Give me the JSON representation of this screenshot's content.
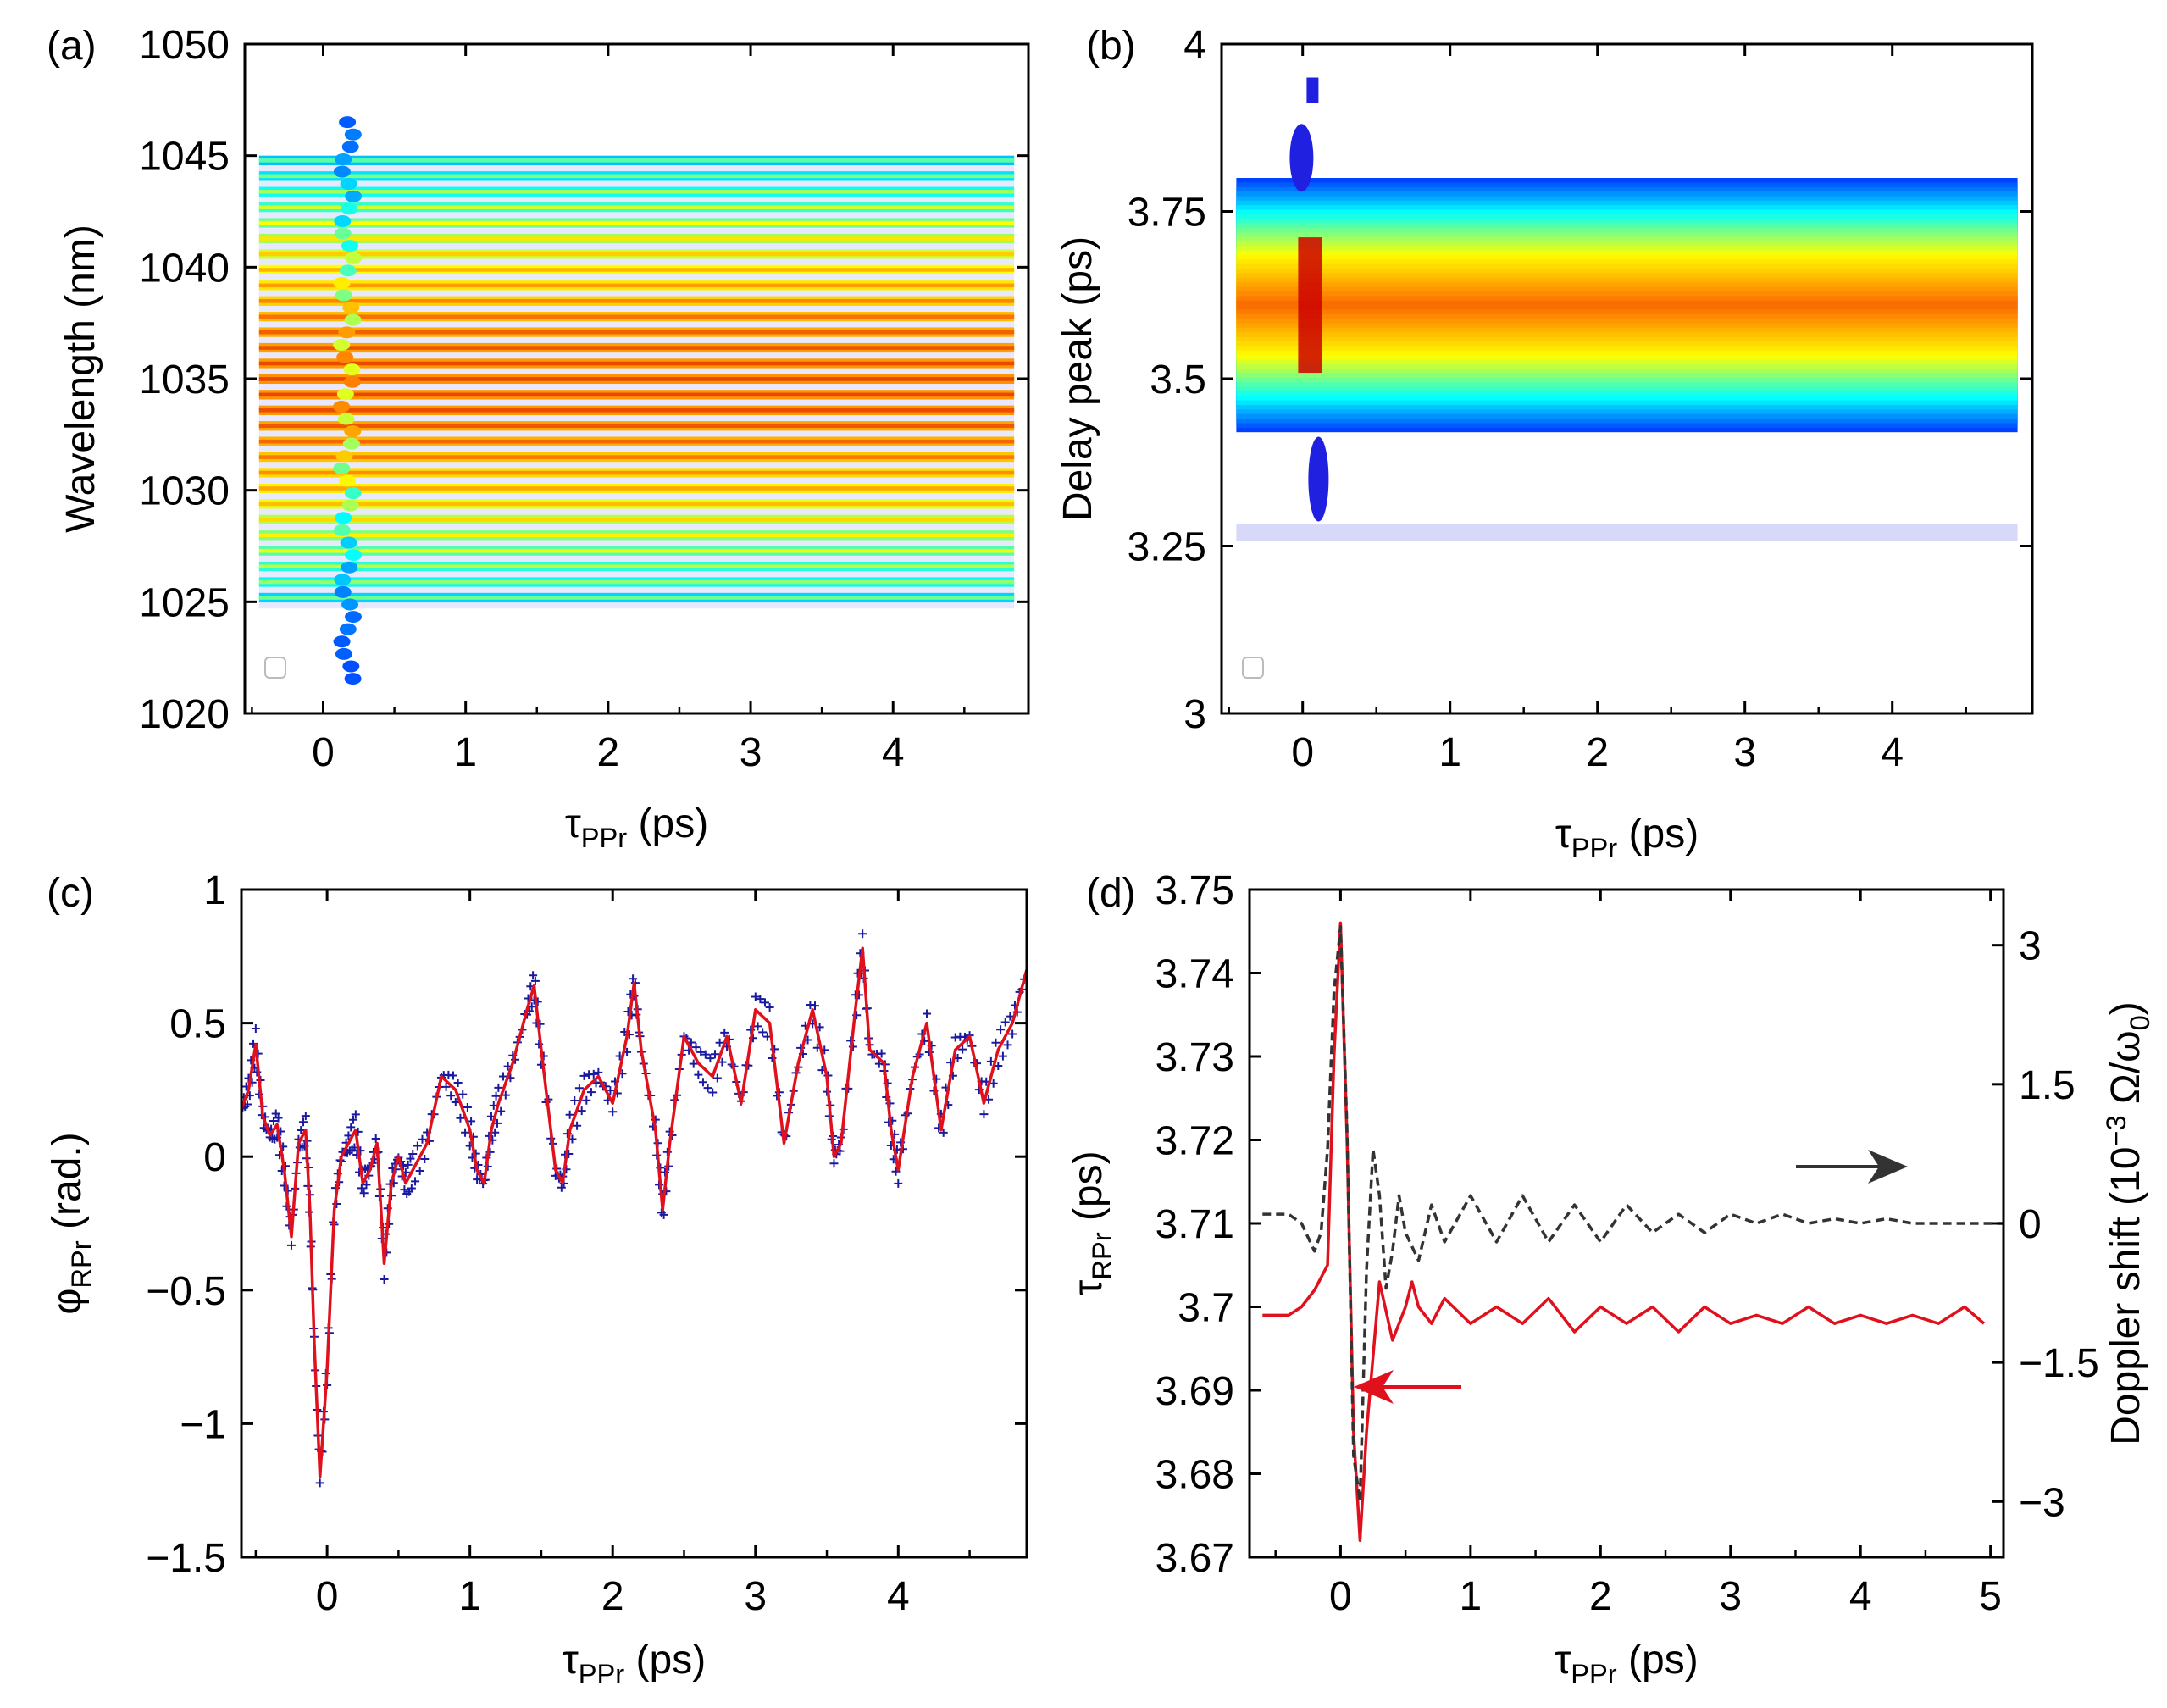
{
  "chart_data": [
    {
      "panel": "(a)",
      "type": "heatmap",
      "xlabel": "τ",
      "xlabel_sub": "PPr",
      "xlabel_unit": " (ps)",
      "ylabel": "Wavelength (nm)",
      "xlim": [
        -0.55,
        4.95
      ],
      "ylim": [
        1020,
        1050
      ],
      "xticks": [
        "0",
        "1",
        "2",
        "3",
        "4"
      ],
      "yticks": [
        "1020",
        "1025",
        "1030",
        "1035",
        "1040",
        "1045",
        "1050"
      ],
      "data_extent": {
        "x": [
          -0.45,
          4.85
        ],
        "y": [
          1025,
          1045
        ]
      },
      "fringe_spacing_nm": 0.7,
      "center_wavelength_nm": 1035,
      "perturbation_tau_ps": 0.17,
      "colormap": [
        "#ffffff",
        "#0000ff",
        "#00ffff",
        "#ffff00",
        "#ff8000",
        "#cc0000"
      ]
    },
    {
      "panel": "(b)",
      "type": "heatmap",
      "xlabel": "τ",
      "xlabel_sub": "PPr",
      "xlabel_unit": " (ps)",
      "ylabel": "Delay peak (ps)",
      "xlim": [
        -0.55,
        4.95
      ],
      "ylim": [
        3,
        4
      ],
      "xticks": [
        "0",
        "1",
        "2",
        "3",
        "4"
      ],
      "yticks": [
        "3",
        "3.25",
        "3.5",
        "3.75",
        "4"
      ],
      "band_center_ps": 3.61,
      "band_extent_ps": [
        3.42,
        3.8
      ],
      "sidelobe_ps": 3.27,
      "colormap": [
        "#ffffff",
        "#0000ff",
        "#00ffff",
        "#ffff00",
        "#ff8000",
        "#cc0000"
      ]
    },
    {
      "panel": "(c)",
      "type": "line",
      "xlabel": "τ",
      "xlabel_sub": "PPr",
      "xlabel_unit": " (ps)",
      "ylabel": "φ",
      "ylabel_sub": "RPr",
      "ylabel_unit": " (rad.)",
      "xlim": [
        -0.6,
        4.9
      ],
      "ylim": [
        -1.5,
        1
      ],
      "xticks": [
        "0",
        "1",
        "2",
        "3",
        "4"
      ],
      "yticks": [
        "−1.5",
        "−1",
        "−0.5",
        "0",
        "0.5",
        "1"
      ],
      "series": [
        {
          "color": "#e0101c",
          "style": "solid",
          "x": [
            -0.6,
            -0.55,
            -0.5,
            -0.45,
            -0.4,
            -0.35,
            -0.3,
            -0.25,
            -0.2,
            -0.15,
            -0.12,
            -0.09,
            -0.05,
            0,
            0.05,
            0.1,
            0.15,
            0.2,
            0.25,
            0.3,
            0.35,
            0.4,
            0.45,
            0.5,
            0.55,
            0.6,
            0.7,
            0.8,
            0.9,
            1.0,
            1.05,
            1.1,
            1.15,
            1.2,
            1.3,
            1.4,
            1.45,
            1.5,
            1.6,
            1.65,
            1.7,
            1.8,
            1.9,
            2.0,
            2.1,
            2.15,
            2.2,
            2.3,
            2.35,
            2.4,
            2.5,
            2.6,
            2.7,
            2.8,
            2.9,
            3.0,
            3.1,
            3.2,
            3.3,
            3.4,
            3.5,
            3.55,
            3.6,
            3.7,
            3.75,
            3.8,
            3.9,
            3.95,
            4.0,
            4.1,
            4.2,
            4.3,
            4.4,
            4.5,
            4.6,
            4.7,
            4.8,
            4.9
          ],
          "y": [
            0.18,
            0.25,
            0.42,
            0.15,
            0.08,
            0.12,
            -0.05,
            -0.3,
            0.05,
            0.1,
            -0.2,
            -0.7,
            -1.2,
            -0.8,
            -0.2,
            0.0,
            0.05,
            0.1,
            -0.1,
            -0.05,
            0.05,
            -0.4,
            -0.1,
            0.0,
            -0.1,
            -0.05,
            0.05,
            0.3,
            0.25,
            0.1,
            -0.05,
            -0.1,
            0.1,
            0.2,
            0.35,
            0.55,
            0.64,
            0.4,
            -0.05,
            -0.1,
            0.1,
            0.25,
            0.3,
            0.2,
            0.45,
            0.65,
            0.4,
            0.1,
            -0.2,
            0.05,
            0.45,
            0.35,
            0.3,
            0.45,
            0.2,
            0.55,
            0.5,
            0.05,
            0.35,
            0.55,
            0.3,
            0.0,
            0.05,
            0.55,
            0.78,
            0.4,
            0.35,
            0.1,
            -0.05,
            0.3,
            0.5,
            0.1,
            0.4,
            0.45,
            0.2,
            0.4,
            0.5,
            0.7
          ]
        },
        {
          "color": "#1a1aa0",
          "style": "markers"
        }
      ]
    },
    {
      "panel": "(d)",
      "type": "line",
      "xlabel": "τ",
      "xlabel_sub": "PPr",
      "xlabel_unit": " (ps)",
      "ylabel": "τ",
      "ylabel_sub": "RPr",
      "ylabel_unit": " (ps)",
      "ylabel_right": "Doppler shift (10",
      "ylabel_right_sup": "−3",
      "ylabel_right_tail": " Ω/ω",
      "ylabel_right_sub": "0",
      "ylabel_right_close": ")",
      "xlim": [
        -0.7,
        5.1
      ],
      "ylim": [
        3.67,
        3.75
      ],
      "ylim_right": [
        -3.6,
        3.6
      ],
      "xticks": [
        "0",
        "1",
        "2",
        "3",
        "4",
        "5"
      ],
      "yticks": [
        "3.67",
        "3.68",
        "3.69",
        "3.7",
        "3.71",
        "3.72",
        "3.73",
        "3.74",
        "3.75"
      ],
      "yticks_right": [
        "−3",
        "−1.5",
        "0",
        "1.5",
        "3"
      ],
      "series": [
        {
          "axis": "left",
          "color": "#e0101c",
          "style": "solid",
          "x": [
            -0.6,
            -0.4,
            -0.3,
            -0.2,
            -0.1,
            -0.05,
            0.0,
            0.05,
            0.1,
            0.15,
            0.2,
            0.3,
            0.4,
            0.5,
            0.55,
            0.6,
            0.7,
            0.8,
            1.0,
            1.2,
            1.4,
            1.6,
            1.8,
            2.0,
            2.2,
            2.4,
            2.6,
            2.8,
            3.0,
            3.2,
            3.4,
            3.6,
            3.8,
            4.0,
            4.2,
            4.4,
            4.6,
            4.8,
            4.95
          ],
          "y": [
            3.699,
            3.699,
            3.7,
            3.702,
            3.705,
            3.73,
            3.746,
            3.72,
            3.685,
            3.672,
            3.685,
            3.703,
            3.696,
            3.7,
            3.703,
            3.7,
            3.698,
            3.701,
            3.698,
            3.7,
            3.698,
            3.701,
            3.697,
            3.7,
            3.698,
            3.7,
            3.697,
            3.7,
            3.698,
            3.699,
            3.698,
            3.7,
            3.698,
            3.699,
            3.698,
            3.699,
            3.698,
            3.7,
            3.698
          ]
        },
        {
          "axis": "right",
          "color": "#333333",
          "style": "dashed",
          "x": [
            -0.6,
            -0.4,
            -0.3,
            -0.2,
            -0.15,
            -0.1,
            -0.05,
            0.0,
            0.05,
            0.1,
            0.15,
            0.2,
            0.25,
            0.3,
            0.35,
            0.4,
            0.45,
            0.5,
            0.6,
            0.7,
            0.8,
            1.0,
            1.2,
            1.4,
            1.6,
            1.8,
            2.0,
            2.2,
            2.4,
            2.6,
            2.8,
            3.0,
            3.2,
            3.4,
            3.6,
            3.8,
            4.0,
            4.2,
            4.4,
            4.6,
            4.8,
            5.0,
            5.1
          ],
          "y": [
            0.1,
            0.1,
            0.0,
            -0.3,
            -0.1,
            0.8,
            2.5,
            3.2,
            1.0,
            -2.5,
            -3.0,
            -0.5,
            0.8,
            0.3,
            -0.7,
            -0.3,
            0.3,
            -0.1,
            -0.4,
            0.2,
            -0.2,
            0.3,
            -0.2,
            0.3,
            -0.2,
            0.2,
            -0.2,
            0.2,
            -0.1,
            0.1,
            -0.1,
            0.1,
            0.0,
            0.1,
            0.0,
            0.05,
            0.0,
            0.05,
            0.0,
            0.0,
            0.0,
            0.0,
            0.0
          ]
        }
      ],
      "arrows": [
        {
          "color": "#333333",
          "direction": "right",
          "target_axis": "right"
        },
        {
          "color": "#e0101c",
          "direction": "left",
          "target_axis": "left"
        }
      ]
    }
  ]
}
